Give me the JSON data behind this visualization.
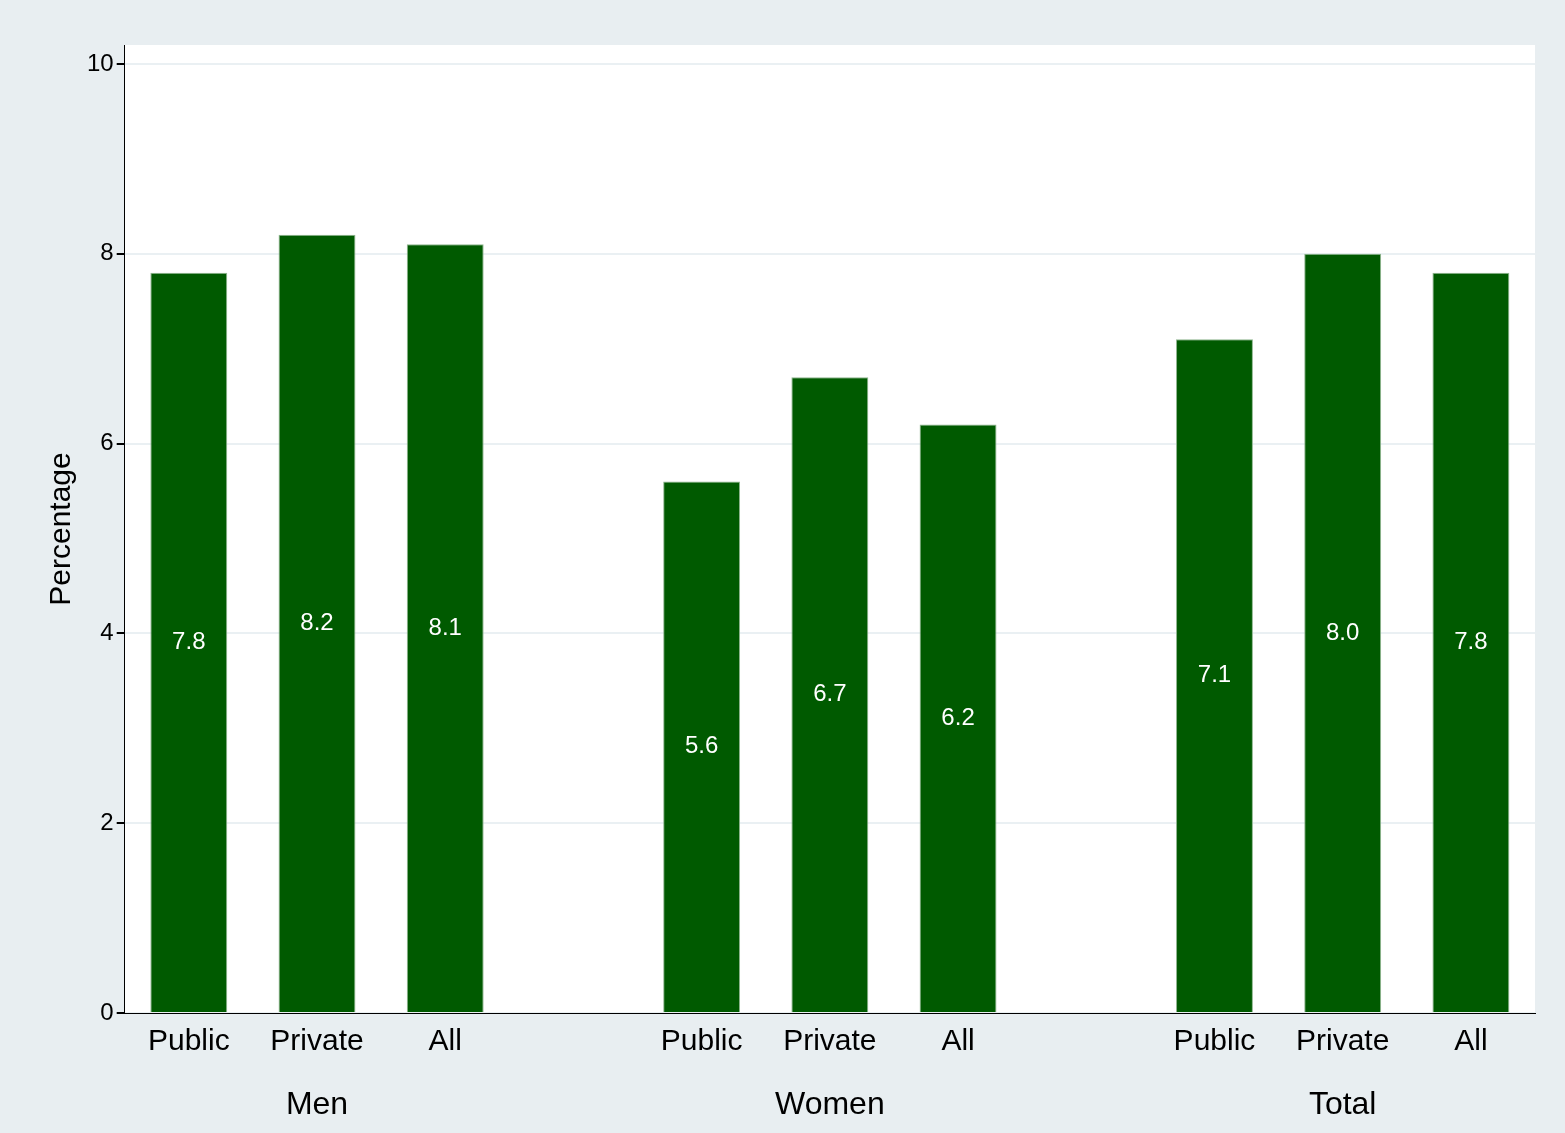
{
  "chart_data": {
    "type": "bar",
    "ylabel": "Percentage",
    "categories": [
      "Public",
      "Private",
      "All",
      null,
      "Public",
      "Private",
      "All",
      null,
      "Public",
      "Private",
      "All"
    ],
    "values": [
      7.8,
      8.2,
      8.1,
      null,
      5.6,
      6.7,
      6.2,
      null,
      7.1,
      8.0,
      7.8
    ],
    "value_labels": [
      "7.8",
      "8.2",
      "8.1",
      null,
      "5.6",
      "6.7",
      "6.2",
      null,
      "7.1",
      "8.0",
      "7.8"
    ],
    "color": "#005a00",
    "ylim": [
      0,
      10.2
    ],
    "yticks": [
      0,
      2,
      4,
      6,
      8,
      10
    ],
    "grid": "y",
    "annotations": [
      "Men",
      "Women",
      "Total"
    ]
  }
}
